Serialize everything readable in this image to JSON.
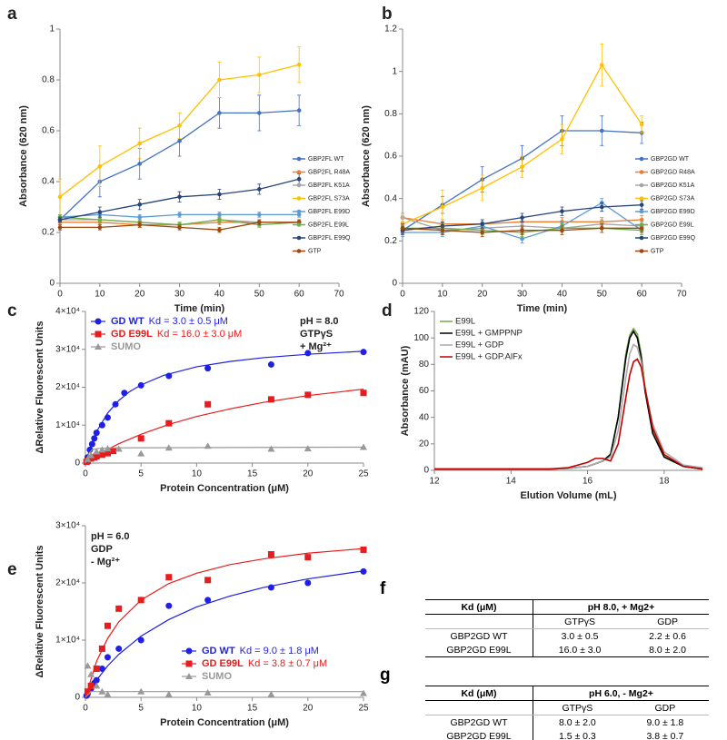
{
  "chart_data": [
    {
      "type": "line",
      "panel": "a",
      "markers": true,
      "legend": "right",
      "x_label": "Time (min)",
      "y_label": "Absorbance (620 nm)",
      "x": [
        0,
        10,
        20,
        30,
        40,
        50,
        60
      ],
      "xlim": [
        0,
        70
      ],
      "xticks": [
        0,
        10,
        20,
        30,
        40,
        50,
        60,
        70
      ],
      "ylim": [
        0,
        1
      ],
      "yticks": [
        0,
        0.2,
        0.4,
        0.6,
        0.8,
        1
      ],
      "series": [
        {
          "name": "GBP2FL WT",
          "color": "#4472c4",
          "values": [
            0.25,
            0.4,
            0.47,
            0.56,
            0.67,
            0.67,
            0.68
          ],
          "errors": [
            0.01,
            0.06,
            0.06,
            0.06,
            0.06,
            0.07,
            0.06
          ]
        },
        {
          "name": "GBP2FL R48A",
          "color": "#ed7d31",
          "values": [
            0.24,
            0.24,
            0.23,
            0.23,
            0.24,
            0.24,
            0.24
          ],
          "errors": [
            0.01,
            0.01,
            0.01,
            0.01,
            0.01,
            0.01,
            0.01
          ]
        },
        {
          "name": "GBP2FL K51A",
          "color": "#a5a5a5",
          "values": [
            0.25,
            0.25,
            0.24,
            0.23,
            0.25,
            0.24,
            0.24
          ],
          "errors": [
            0.01,
            0.01,
            0.01,
            0.01,
            0.01,
            0.01,
            0.01
          ]
        },
        {
          "name": "GBP2FL S73A",
          "color": "#ffc000",
          "values": [
            0.34,
            0.46,
            0.55,
            0.62,
            0.8,
            0.82,
            0.86
          ],
          "errors": [
            0.07,
            0.08,
            0.06,
            0.05,
            0.07,
            0.07,
            0.07
          ]
        },
        {
          "name": "GBP2FL E99D",
          "color": "#5b9bd5",
          "values": [
            0.26,
            0.27,
            0.26,
            0.27,
            0.27,
            0.27,
            0.27
          ],
          "errors": [
            0.01,
            0.01,
            0.01,
            0.01,
            0.01,
            0.01,
            0.01
          ]
        },
        {
          "name": "GBP2FL E99L",
          "color": "#70ad47",
          "values": [
            0.26,
            0.25,
            0.24,
            0.23,
            0.25,
            0.23,
            0.24
          ],
          "errors": [
            0.01,
            0.01,
            0.01,
            0.01,
            0.01,
            0.01,
            0.01
          ]
        },
        {
          "name": "GBP2FL E99Q",
          "color": "#264478",
          "values": [
            0.25,
            0.28,
            0.31,
            0.34,
            0.35,
            0.37,
            0.41
          ],
          "errors": [
            0.01,
            0.02,
            0.02,
            0.02,
            0.02,
            0.02,
            0.02
          ]
        },
        {
          "name": "GTP",
          "color": "#9e480e",
          "values": [
            0.22,
            0.22,
            0.23,
            0.22,
            0.21,
            0.24,
            0.24
          ],
          "errors": [
            0.01,
            0.01,
            0.01,
            0.01,
            0.01,
            0.01,
            0.01
          ]
        }
      ]
    },
    {
      "type": "line",
      "panel": "b",
      "markers": true,
      "legend": "right",
      "x_label": "Time (min)",
      "y_label": "Absorbance (620 nm)",
      "x": [
        0,
        10,
        20,
        30,
        40,
        50,
        60
      ],
      "xlim": [
        0,
        70
      ],
      "xticks": [
        0,
        10,
        20,
        30,
        40,
        50,
        60,
        70
      ],
      "ylim": [
        0,
        1.2
      ],
      "yticks": [
        0,
        0.2,
        0.4,
        0.6,
        0.8,
        1,
        1.2
      ],
      "series": [
        {
          "name": "GBP2GD WT",
          "color": "#4472c4",
          "values": [
            0.25,
            0.37,
            0.49,
            0.59,
            0.72,
            0.72,
            0.71
          ],
          "errors": [
            0.01,
            0.04,
            0.06,
            0.06,
            0.07,
            0.07,
            0.05
          ]
        },
        {
          "name": "GBP2GD R48A",
          "color": "#ed7d31",
          "values": [
            0.31,
            0.28,
            0.28,
            0.29,
            0.29,
            0.29,
            0.3
          ],
          "errors": [
            0.02,
            0.02,
            0.02,
            0.02,
            0.02,
            0.02,
            0.02
          ]
        },
        {
          "name": "GBP2GD K51A",
          "color": "#a5a5a5",
          "values": [
            0.31,
            0.25,
            0.26,
            0.27,
            0.26,
            0.28,
            0.27
          ],
          "errors": [
            0.02,
            0.02,
            0.02,
            0.02,
            0.02,
            0.02,
            0.02
          ]
        },
        {
          "name": "GBP2GD S73A",
          "color": "#ffc000",
          "values": [
            0.28,
            0.36,
            0.45,
            0.55,
            0.68,
            1.03,
            0.75
          ],
          "errors": [
            0.04,
            0.08,
            0.06,
            0.05,
            0.07,
            0.1,
            0.04
          ]
        },
        {
          "name": "GBP2GD E99D",
          "color": "#5b9bd5",
          "values": [
            0.24,
            0.24,
            0.27,
            0.21,
            0.27,
            0.38,
            0.25
          ],
          "errors": [
            0.02,
            0.02,
            0.02,
            0.02,
            0.02,
            0.02,
            0.02
          ]
        },
        {
          "name": "GBP2GD E99L",
          "color": "#70ad47",
          "values": [
            0.26,
            0.26,
            0.25,
            0.24,
            0.26,
            0.26,
            0.25
          ],
          "errors": [
            0.02,
            0.02,
            0.02,
            0.02,
            0.02,
            0.02,
            0.02
          ]
        },
        {
          "name": "GBP2GD E99Q",
          "color": "#264478",
          "values": [
            0.25,
            0.27,
            0.28,
            0.31,
            0.34,
            0.36,
            0.37
          ],
          "errors": [
            0.02,
            0.02,
            0.02,
            0.02,
            0.02,
            0.02,
            0.02
          ]
        },
        {
          "name": "GTP",
          "color": "#9e480e",
          "values": [
            0.26,
            0.25,
            0.24,
            0.25,
            0.25,
            0.26,
            0.26
          ],
          "errors": [
            0.02,
            0.02,
            0.02,
            0.02,
            0.02,
            0.02,
            0.02
          ]
        }
      ]
    },
    {
      "type": "scatter",
      "panel": "c",
      "legend": "upper left",
      "x_label": "Protein Concentration (μM)",
      "y_label": "ΔRelative Fluorescent Units",
      "annotations": [
        "pH = 8.0",
        "GTPγS",
        "+ Mg²⁺"
      ],
      "xlim": [
        0,
        25
      ],
      "xticks": [
        0,
        5,
        10,
        15,
        20,
        25
      ],
      "ylim": [
        0,
        40000
      ],
      "yticks": [
        0,
        {
          "value": 10000,
          "label": "1×10⁴"
        },
        {
          "value": 20000,
          "label": "2×10⁴"
        },
        {
          "value": 30000,
          "label": "3×10⁴"
        },
        {
          "value": 40000,
          "label": "4×10⁴"
        }
      ],
      "series": [
        {
          "name": "GD WT",
          "annotation": "Kd = 3.0 ± 0.5 μM",
          "color": "#1f1fe6",
          "marker": "circle",
          "x": [
            0.1,
            0.2,
            0.4,
            0.6,
            0.8,
            1,
            1.5,
            2,
            2.7,
            3.5,
            5,
            7.5,
            11,
            16.7,
            20,
            25
          ],
          "values": [
            500,
            1500,
            3500,
            5000,
            6500,
            8000,
            10000,
            12000,
            15500,
            18500,
            20500,
            23000,
            25000,
            26000,
            29000,
            29300
          ],
          "fit": {
            "x": [
              0,
              0.5,
              1,
              2,
              3,
              4,
              5,
              7,
              10,
              13,
              16,
              20,
              25
            ],
            "values": [
              0,
              4700,
              8300,
              13200,
              16500,
              18900,
              20600,
              23100,
              25400,
              26800,
              27800,
              28700,
              29500
            ]
          }
        },
        {
          "name": "GD E99L",
          "annotation": "Kd = 16.0 ± 3.0 μM",
          "color": "#e81c1c",
          "marker": "square",
          "x": [
            0.1,
            0.2,
            0.5,
            0.8,
            1,
            1.5,
            2,
            2.5,
            5,
            7.5,
            11,
            16.7,
            20,
            25
          ],
          "values": [
            300,
            600,
            1200,
            1500,
            1800,
            2200,
            2600,
            3200,
            6500,
            10500,
            15500,
            16800,
            18000,
            18500
          ],
          "fit": {
            "x": [
              0,
              1,
              2,
              3,
              5,
              7.5,
              10,
              13,
              16,
              20,
              25
            ],
            "values": [
              0,
              1900,
              3600,
              5100,
              7600,
              10200,
              12300,
              14300,
              16000,
              17800,
              19500
            ]
          }
        },
        {
          "name": "SUMO",
          "color": "#999999",
          "marker": "triangle",
          "x": [
            0.2,
            0.5,
            1,
            1.5,
            2,
            3,
            5,
            7.5,
            11,
            16.7,
            20,
            25
          ],
          "values": [
            1000,
            2000,
            3000,
            3500,
            3800,
            3700,
            2500,
            4000,
            4500,
            3700,
            3800,
            4200
          ],
          "fit": {
            "x": [
              0,
              0.3,
              0.6,
              1,
              2,
              25
            ],
            "values": [
              0,
              2500,
              3500,
              3800,
              4000,
              4200
            ]
          }
        }
      ]
    },
    {
      "type": "line",
      "panel": "d",
      "markers": false,
      "legend": "upper left",
      "x_label": "Elution Volume (mL)",
      "y_label": "Absorbance (mAU)",
      "x": [
        12,
        13,
        14,
        15,
        15.5,
        16,
        16.2,
        16.4,
        16.6,
        16.8,
        17,
        17.1,
        17.2,
        17.3,
        17.4,
        17.5,
        17.7,
        18,
        18.5,
        19
      ],
      "xlim": [
        12,
        19
      ],
      "xticks": [
        12,
        14,
        16,
        18
      ],
      "ylim": [
        0,
        120
      ],
      "yticks": [
        0,
        20,
        40,
        60,
        80,
        100,
        120
      ],
      "series": [
        {
          "name": "E99L",
          "color": "#70ad47",
          "values": [
            1,
            1,
            1,
            1,
            1.5,
            3,
            5,
            7,
            12,
            40,
            88,
            102,
            107,
            103,
            88,
            63,
            30,
            11,
            3,
            1
          ]
        },
        {
          "name": "E99L + GMPPNP",
          "color": "#000000",
          "values": [
            1,
            1,
            1,
            1,
            1.5,
            3,
            5,
            7,
            12,
            40,
            85,
            100,
            105,
            100,
            85,
            60,
            28,
            10,
            3,
            1
          ]
        },
        {
          "name": "E99L + GDP",
          "color": "#aaaaaa",
          "values": [
            1,
            1,
            1,
            1,
            1.5,
            3,
            5,
            7,
            10,
            30,
            70,
            88,
            95,
            93,
            82,
            62,
            35,
            14,
            4,
            2
          ]
        },
        {
          "name": "E99L + GDP.AlFx",
          "color": "#c00000",
          "values": [
            1,
            1,
            1,
            1,
            2,
            6,
            9,
            9,
            7,
            20,
            55,
            72,
            82,
            84,
            78,
            62,
            32,
            12,
            3,
            1
          ]
        }
      ]
    },
    {
      "type": "scatter",
      "panel": "e",
      "legend": "lower right",
      "x_label": "Protein Concentration (μM)",
      "y_label": "ΔRelative Fluorescent Units",
      "annotations": [
        "pH = 6.0",
        "GDP",
        "- Mg²⁺"
      ],
      "xlim": [
        0,
        25
      ],
      "xticks": [
        0,
        5,
        10,
        15,
        20,
        25
      ],
      "ylim": [
        0,
        30000
      ],
      "yticks": [
        0,
        {
          "value": 10000,
          "label": "1×10⁴"
        },
        {
          "value": 20000,
          "label": "2×10⁴"
        },
        {
          "value": 30000,
          "label": "3×10⁴"
        }
      ],
      "series": [
        {
          "name": "GD WT",
          "annotation": "Kd = 9.0 ± 1.8 μM",
          "color": "#1f1fe6",
          "marker": "circle",
          "x": [
            0.1,
            0.2,
            0.5,
            0.8,
            1,
            1.5,
            2,
            3,
            5,
            7.5,
            11,
            16.7,
            20,
            25
          ],
          "values": [
            300,
            600,
            1500,
            2500,
            3000,
            5000,
            7000,
            8500,
            10000,
            16000,
            17000,
            19200,
            20000,
            22000
          ],
          "fit": {
            "x": [
              0,
              1,
              2,
              3,
              5,
              7.5,
              10,
              13,
              16,
              20,
              25
            ],
            "values": [
              0,
              3000,
              5500,
              7500,
              10700,
              13600,
              15800,
              17700,
              19200,
              20700,
              22100
            ]
          }
        },
        {
          "name": "GD E99L",
          "annotation": "Kd = 3.8 ± 0.7 μM",
          "color": "#e81c1c",
          "marker": "square",
          "x": [
            0.2,
            0.5,
            1,
            1.5,
            2,
            3,
            5,
            7.5,
            11,
            16.7,
            20,
            25
          ],
          "values": [
            1000,
            2000,
            5000,
            8500,
            12500,
            15500,
            17000,
            21000,
            20500,
            25000,
            24500,
            25800
          ],
          "fit": {
            "x": [
              0,
              1,
              2,
              3,
              5,
              7.5,
              10,
              13,
              16,
              20,
              25
            ],
            "values": [
              0,
              6300,
              10300,
              13200,
              17000,
              19900,
              21700,
              23200,
              24200,
              25200,
              26000
            ]
          }
        },
        {
          "name": "SUMO",
          "color": "#999999",
          "marker": "triangle",
          "x": [
            0.2,
            0.5,
            1,
            1.5,
            2,
            5,
            7.5,
            11,
            16.7,
            25
          ],
          "values": [
            5500,
            4000,
            2000,
            1000,
            500,
            1000,
            500,
            800,
            500,
            700
          ],
          "fit": {
            "x": [
              0,
              0.5,
              25
            ],
            "values": [
              0,
              1000,
              1000
            ]
          }
        }
      ]
    }
  ],
  "tables": [
    {
      "panel": "f",
      "header": [
        "Kd (μM)",
        "pH 8.0, + Mg2+"
      ],
      "subheader": [
        "GTPγS",
        "GDP"
      ],
      "rows": [
        [
          "GBP2GD WT",
          "3.0 ± 0.5",
          "2.2 ± 0.6"
        ],
        [
          "GBP2GD E99L",
          "16.0 ± 3.0",
          "8.0 ± 2.0"
        ]
      ]
    },
    {
      "panel": "g",
      "header": [
        "Kd (μM)",
        "pH 6.0, - Mg2+"
      ],
      "subheader": [
        "GTPγS",
        "GDP"
      ],
      "rows": [
        [
          "GBP2GD WT",
          "8.0 ± 2.0",
          "9.0 ± 1.8"
        ],
        [
          "GBP2GD E99L",
          "1.5 ± 0.3",
          "3.8 ± 0.7"
        ]
      ]
    }
  ]
}
